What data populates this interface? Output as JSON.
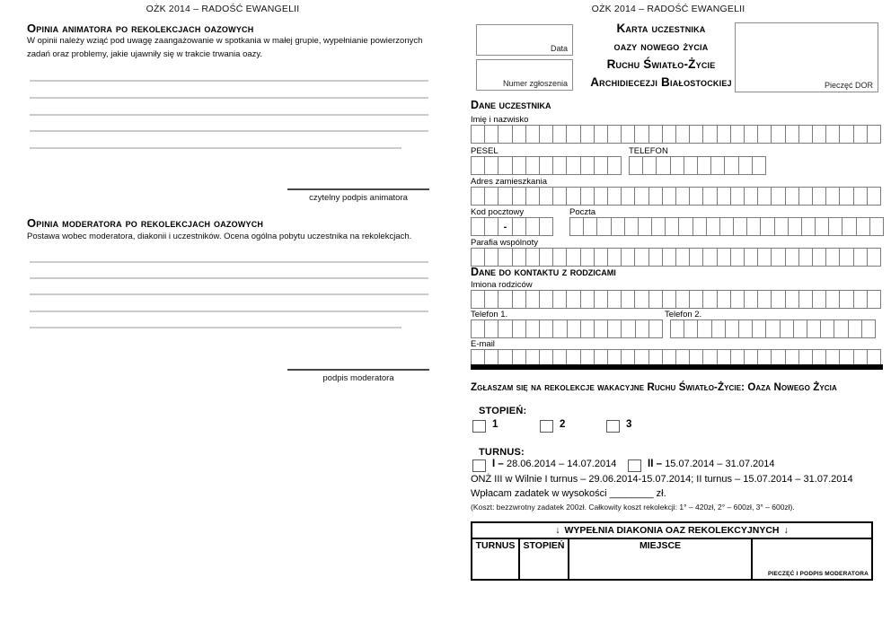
{
  "page_header": "OŻK 2014 – RADOŚĆ EWANGELII",
  "left_page": {
    "animator": {
      "title": "Opinia animatora po rekolekcjach oazowych",
      "description": "W opinii należy wziąć pod uwagę zaangażowanie w spotkania w małej grupie, wypełnianie powierzonych zadań oraz problemy, jakie ujawniły się w trakcie trwania oazy.",
      "signature_label": "czytelny podpis animatora"
    },
    "moderator": {
      "title": "Opinia moderatora po rekolekcjach oazowych",
      "description": "Postawa wobec moderatora, diakonii i uczestników. Ocena ogólna pobytu uczestnika na rekolekcjach.",
      "signature_label": "podpis moderatora"
    }
  },
  "right_page": {
    "date_box_label": "Data",
    "application_number_box_label": "Numer zgłoszenia",
    "stamp_box_label": "Pieczęć DOR",
    "title_lines": [
      "Karta uczestnika",
      "oazy nowego życia",
      "Ruchu Światło-Życie",
      "Archidiecezji Białostockiej"
    ],
    "participant_section": {
      "heading": "Dane uczestnika",
      "name_label": "Imię i nazwisko",
      "pesel_label": "PESEL",
      "phone_label": "TELEFON",
      "address_label": "Adres zamieszkania",
      "postal_code_label": "Kod pocztowy",
      "postal_code_separator": "-",
      "post_label": "Poczta",
      "parish_label": "Parafia wspólnoty"
    },
    "parents_section": {
      "heading": "Dane do kontaktu z rodzicami",
      "parents_names_label": "Imiona rodziców",
      "phone1_label": "Telefon 1.",
      "phone2_label": "Telefon 2.",
      "email_label": "E-mail"
    },
    "enrollment_section": {
      "heading": "Zgłaszam się na rekolekcje wakacyjne Ruchu Światło-Życie: Oaza Nowego Życia",
      "stage_label": "STOPIEŃ:",
      "stage_options": [
        "1",
        "2",
        "3"
      ],
      "turnus_label": "TURNUS:",
      "turnus_options": [
        {
          "numeral": "I –",
          "dates": "28.06.2014 – 14.07.2014"
        },
        {
          "numeral": "II –",
          "dates": "15.07.2014 – 31.07.2014"
        }
      ],
      "onz3_note": "ONŻ III w Wilnie I turnus – 29.06.2014-15.07.2014; II turnus – 15.07.2014 – 31.07.2014",
      "deposit_line": "Wpłacam zadatek w wysokości ________ zł.",
      "cost_note": "(Koszt: bezzwrotny zadatek 200zł. Całkowity koszt rekolekcji: 1° – 420zł, 2° – 600zł, 3° – 600zł)."
    },
    "office_table": {
      "arrow": "↓",
      "header": "WYPEŁNIA DIAKONIA OAZ REKOLEKCYJNYCH",
      "col_turnus": "TURNUS",
      "col_stage": "STOPIEŃ",
      "col_place": "MIEJSCE",
      "stamp_cell_label": "PIECZĘĆ I PODPIS MODERATORA"
    }
  }
}
